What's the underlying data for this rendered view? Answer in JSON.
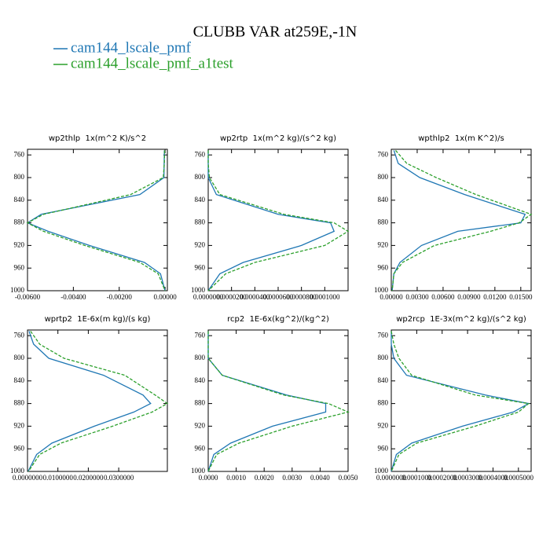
{
  "title": "CLUBB VAR at259E,-1N",
  "chart_data": [
    {
      "type": "profile",
      "title": "wp2thlp  1x(m^2 K)/s^2",
      "y": [
        752,
        775,
        800,
        830,
        865,
        880,
        895,
        920,
        950,
        970,
        1000
      ],
      "series": [
        {
          "name": "cam144_lscale_pmf",
          "color": "#1f77b4",
          "values": [
            -3e-05,
            -4e-05,
            -5e-05,
            -0.0011,
            -0.0054,
            -0.006,
            -0.0051,
            -0.0033,
            -0.0009,
            -0.0002,
            0
          ]
        },
        {
          "name": "cam144_lscale_pmf_a1test",
          "color": "#2ca02c",
          "values": [
            -2e-05,
            -3e-05,
            -8e-05,
            -0.0015,
            -0.0053,
            -0.006,
            -0.0053,
            -0.0035,
            -0.0011,
            -0.0003,
            0
          ]
        }
      ],
      "xlim": [
        -0.006,
        0.0001
      ],
      "xticks": [
        {
          "value": -0.006,
          "label": "-0.00600"
        },
        {
          "value": -0.004,
          "label": "-0.00400"
        },
        {
          "value": -0.002,
          "label": "-0.00200"
        },
        {
          "value": 0,
          "label": "0.00000"
        }
      ],
      "ylim": [
        1000,
        750
      ],
      "yticks": [
        760,
        800,
        840,
        880,
        920,
        960,
        1000
      ]
    },
    {
      "type": "profile",
      "title": "wp2rtp  1x(m^2 kg)/(s^2 kg)",
      "y": [
        752,
        775,
        800,
        830,
        865,
        880,
        895,
        920,
        950,
        970,
        1000
      ],
      "series": [
        {
          "name": "cam144_lscale_pmf",
          "color": "#1f77b4",
          "values": [
            0,
            0,
            0,
            7e-06,
            6e-05,
            0.000105,
            0.000108,
            8e-05,
            3e-05,
            1e-05,
            0
          ]
        },
        {
          "name": "cam144_lscale_pmf_a1test",
          "color": "#2ca02c",
          "values": [
            0,
            0,
            1e-06,
            1e-05,
            6.5e-05,
            0.000108,
            0.00012,
            0.0001,
            4e-05,
            1.5e-05,
            0
          ]
        }
      ],
      "xlim": [
        0,
        0.00012
      ],
      "xticks": [
        {
          "value": 0,
          "label": "0.0000000"
        },
        {
          "value": 2e-05,
          "label": "0.0000200"
        },
        {
          "value": 4e-05,
          "label": "0.0000400"
        },
        {
          "value": 6e-05,
          "label": "0.0000600"
        },
        {
          "value": 8e-05,
          "label": "0.0000800"
        },
        {
          "value": 0.0001,
          "label": "0.0001000"
        }
      ],
      "ylim": [
        1000,
        750
      ],
      "yticks": [
        760,
        800,
        840,
        880,
        920,
        960,
        1000
      ]
    },
    {
      "type": "profile",
      "title": "wpthlp2  1x(m K^2)/s",
      "y": [
        752,
        775,
        800,
        830,
        865,
        880,
        895,
        920,
        950,
        970,
        1000
      ],
      "series": [
        {
          "name": "cam144_lscale_pmf",
          "color": "#1f77b4",
          "values": [
            0.0003,
            0.0008,
            0.0033,
            0.0085,
            0.0155,
            0.015,
            0.0077,
            0.0035,
            0.001,
            0.0003,
            0.0001
          ]
        },
        {
          "name": "cam144_lscale_pmf_a1test",
          "color": "#2ca02c",
          "values": [
            0.0005,
            0.0018,
            0.0052,
            0.0098,
            0.0162,
            0.0148,
            0.0115,
            0.005,
            0.0013,
            0.0003,
            0.0001
          ]
        }
      ],
      "xlim": [
        0,
        0.0162
      ],
      "xticks": [
        {
          "value": 0,
          "label": "0.00000"
        },
        {
          "value": 0.003,
          "label": "0.00300"
        },
        {
          "value": 0.006,
          "label": "0.00600"
        },
        {
          "value": 0.009,
          "label": "0.00900"
        },
        {
          "value": 0.012,
          "label": "0.01200"
        },
        {
          "value": 0.015,
          "label": "0.01500"
        }
      ],
      "ylim": [
        1000,
        750
      ],
      "yticks": [
        760,
        800,
        840,
        880,
        920,
        960,
        1000
      ]
    },
    {
      "type": "profile",
      "title": "wprtp2  1E-6x(m kg)/(s kg)",
      "y": [
        752,
        775,
        800,
        830,
        865,
        880,
        895,
        920,
        950,
        970,
        1000
      ],
      "series": [
        {
          "name": "cam144_lscale_pmf",
          "color": "#1f77b4",
          "values": [
            0.0005,
            0.002,
            0.007,
            0.025,
            0.038,
            0.0405,
            0.035,
            0.022,
            0.008,
            0.003,
            0.0002
          ]
        },
        {
          "name": "cam144_lscale_pmf_a1test",
          "color": "#2ca02c",
          "values": [
            0.001,
            0.004,
            0.012,
            0.032,
            0.042,
            0.046,
            0.041,
            0.028,
            0.011,
            0.004,
            0.0003
          ]
        }
      ],
      "xlim": [
        0,
        0.046
      ],
      "xticks": [
        {
          "value": 0,
          "label": "0.0000000"
        },
        {
          "value": 0.01,
          "label": "0.0100000"
        },
        {
          "value": 0.02,
          "label": "0.0200000"
        },
        {
          "value": 0.03,
          "label": "0.0300000"
        }
      ],
      "ylim": [
        1000,
        750
      ],
      "yticks": [
        760,
        800,
        840,
        880,
        920,
        960,
        1000
      ]
    },
    {
      "type": "profile",
      "title": "rcp2  1E-6x(kg^2)/(kg^2)",
      "y": [
        752,
        775,
        800,
        830,
        865,
        880,
        895,
        920,
        950,
        970,
        1000
      ],
      "series": [
        {
          "name": "cam144_lscale_pmf",
          "color": "#1f77b4",
          "values": [
            0,
            0,
            0,
            0.0005,
            0.0028,
            0.0042,
            0.0042,
            0.0023,
            0.0008,
            0.0002,
            0
          ]
        },
        {
          "name": "cam144_lscale_pmf_a1test",
          "color": "#2ca02c",
          "values": [
            0,
            0,
            0,
            0.0005,
            0.0027,
            0.0043,
            0.005,
            0.003,
            0.0011,
            0.0003,
            0
          ]
        }
      ],
      "xlim": [
        0,
        0.005
      ],
      "xticks": [
        {
          "value": 0,
          "label": "0.0000"
        },
        {
          "value": 0.001,
          "label": "0.0010"
        },
        {
          "value": 0.002,
          "label": "0.0020"
        },
        {
          "value": 0.003,
          "label": "0.0030"
        },
        {
          "value": 0.004,
          "label": "0.0040"
        },
        {
          "value": 0.005,
          "label": "0.0050"
        }
      ],
      "ylim": [
        1000,
        750
      ],
      "yticks": [
        760,
        800,
        840,
        880,
        920,
        960,
        1000
      ]
    },
    {
      "type": "profile",
      "title": "wp2rcp  1E-3x(m^2 kg)/(s^2 kg)",
      "y": [
        752,
        775,
        800,
        830,
        865,
        880,
        895,
        920,
        950,
        970,
        1000
      ],
      "series": [
        {
          "name": "cam144_lscale_pmf",
          "color": "#1f77b4",
          "values": [
            0,
            0,
            1e-05,
            6e-05,
            0.00037,
            0.00054,
            0.00048,
            0.00028,
            8e-05,
            2e-05,
            0
          ]
        },
        {
          "name": "cam144_lscale_pmf_a1test",
          "color": "#2ca02c",
          "values": [
            0,
            1e-05,
            3e-05,
            8e-05,
            0.00033,
            0.00054,
            0.0005,
            0.00033,
            0.0001,
            3e-05,
            0
          ]
        }
      ],
      "xlim": [
        0,
        0.00055
      ],
      "xticks": [
        {
          "value": 0,
          "label": "0.0000000"
        },
        {
          "value": 0.0001,
          "label": "0.0001000"
        },
        {
          "value": 0.0002,
          "label": "0.0002000"
        },
        {
          "value": 0.0003,
          "label": "0.0003000"
        },
        {
          "value": 0.0004,
          "label": "0.0004000"
        },
        {
          "value": 0.0005,
          "label": "0.0005000"
        }
      ],
      "ylim": [
        1000,
        750
      ],
      "yticks": [
        760,
        800,
        840,
        880,
        920,
        960,
        1000
      ]
    }
  ]
}
